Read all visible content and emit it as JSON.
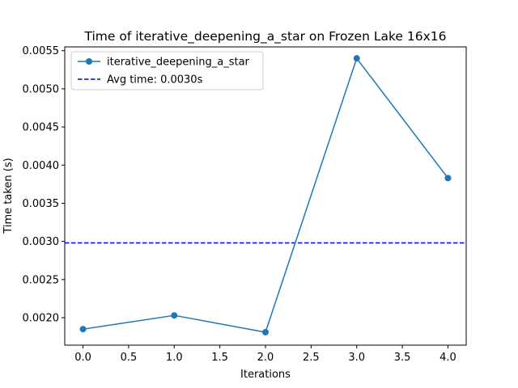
{
  "chart_data": {
    "type": "line",
    "title": "Time of iterative_deepening_a_star on Frozen Lake 16x16",
    "xlabel": "Iterations",
    "ylabel": "Time taken (s)",
    "xlim": [
      -0.2,
      4.2
    ],
    "ylim": [
      0.00164,
      0.00555
    ],
    "x_ticks": [
      0.0,
      0.5,
      1.0,
      1.5,
      2.0,
      2.5,
      3.0,
      3.5,
      4.0
    ],
    "x_tick_labels": [
      "0.0",
      "0.5",
      "1.0",
      "1.5",
      "2.0",
      "2.5",
      "3.0",
      "3.5",
      "4.0"
    ],
    "y_ticks": [
      0.002,
      0.0025,
      0.003,
      0.0035,
      0.004,
      0.0045,
      0.005,
      0.0055
    ],
    "y_tick_labels": [
      "0.0020",
      "0.0025",
      "0.0030",
      "0.0035",
      "0.0040",
      "0.0045",
      "0.0050",
      "0.0055"
    ],
    "grid": false,
    "legend_position": "top-left",
    "series": [
      {
        "name": "iterative_deepening_a_star",
        "x": [
          0,
          1,
          2,
          3,
          4
        ],
        "y": [
          0.00185,
          0.00203,
          0.00181,
          0.0054,
          0.00383
        ],
        "color": "#1f77b4",
        "marker": "circle",
        "line_style": "solid"
      }
    ],
    "reference_lines": [
      {
        "name": "Avg time: 0.0030s",
        "orientation": "horizontal",
        "y": 0.00298,
        "color": "#0000ff",
        "line_style": "dashed"
      }
    ]
  }
}
